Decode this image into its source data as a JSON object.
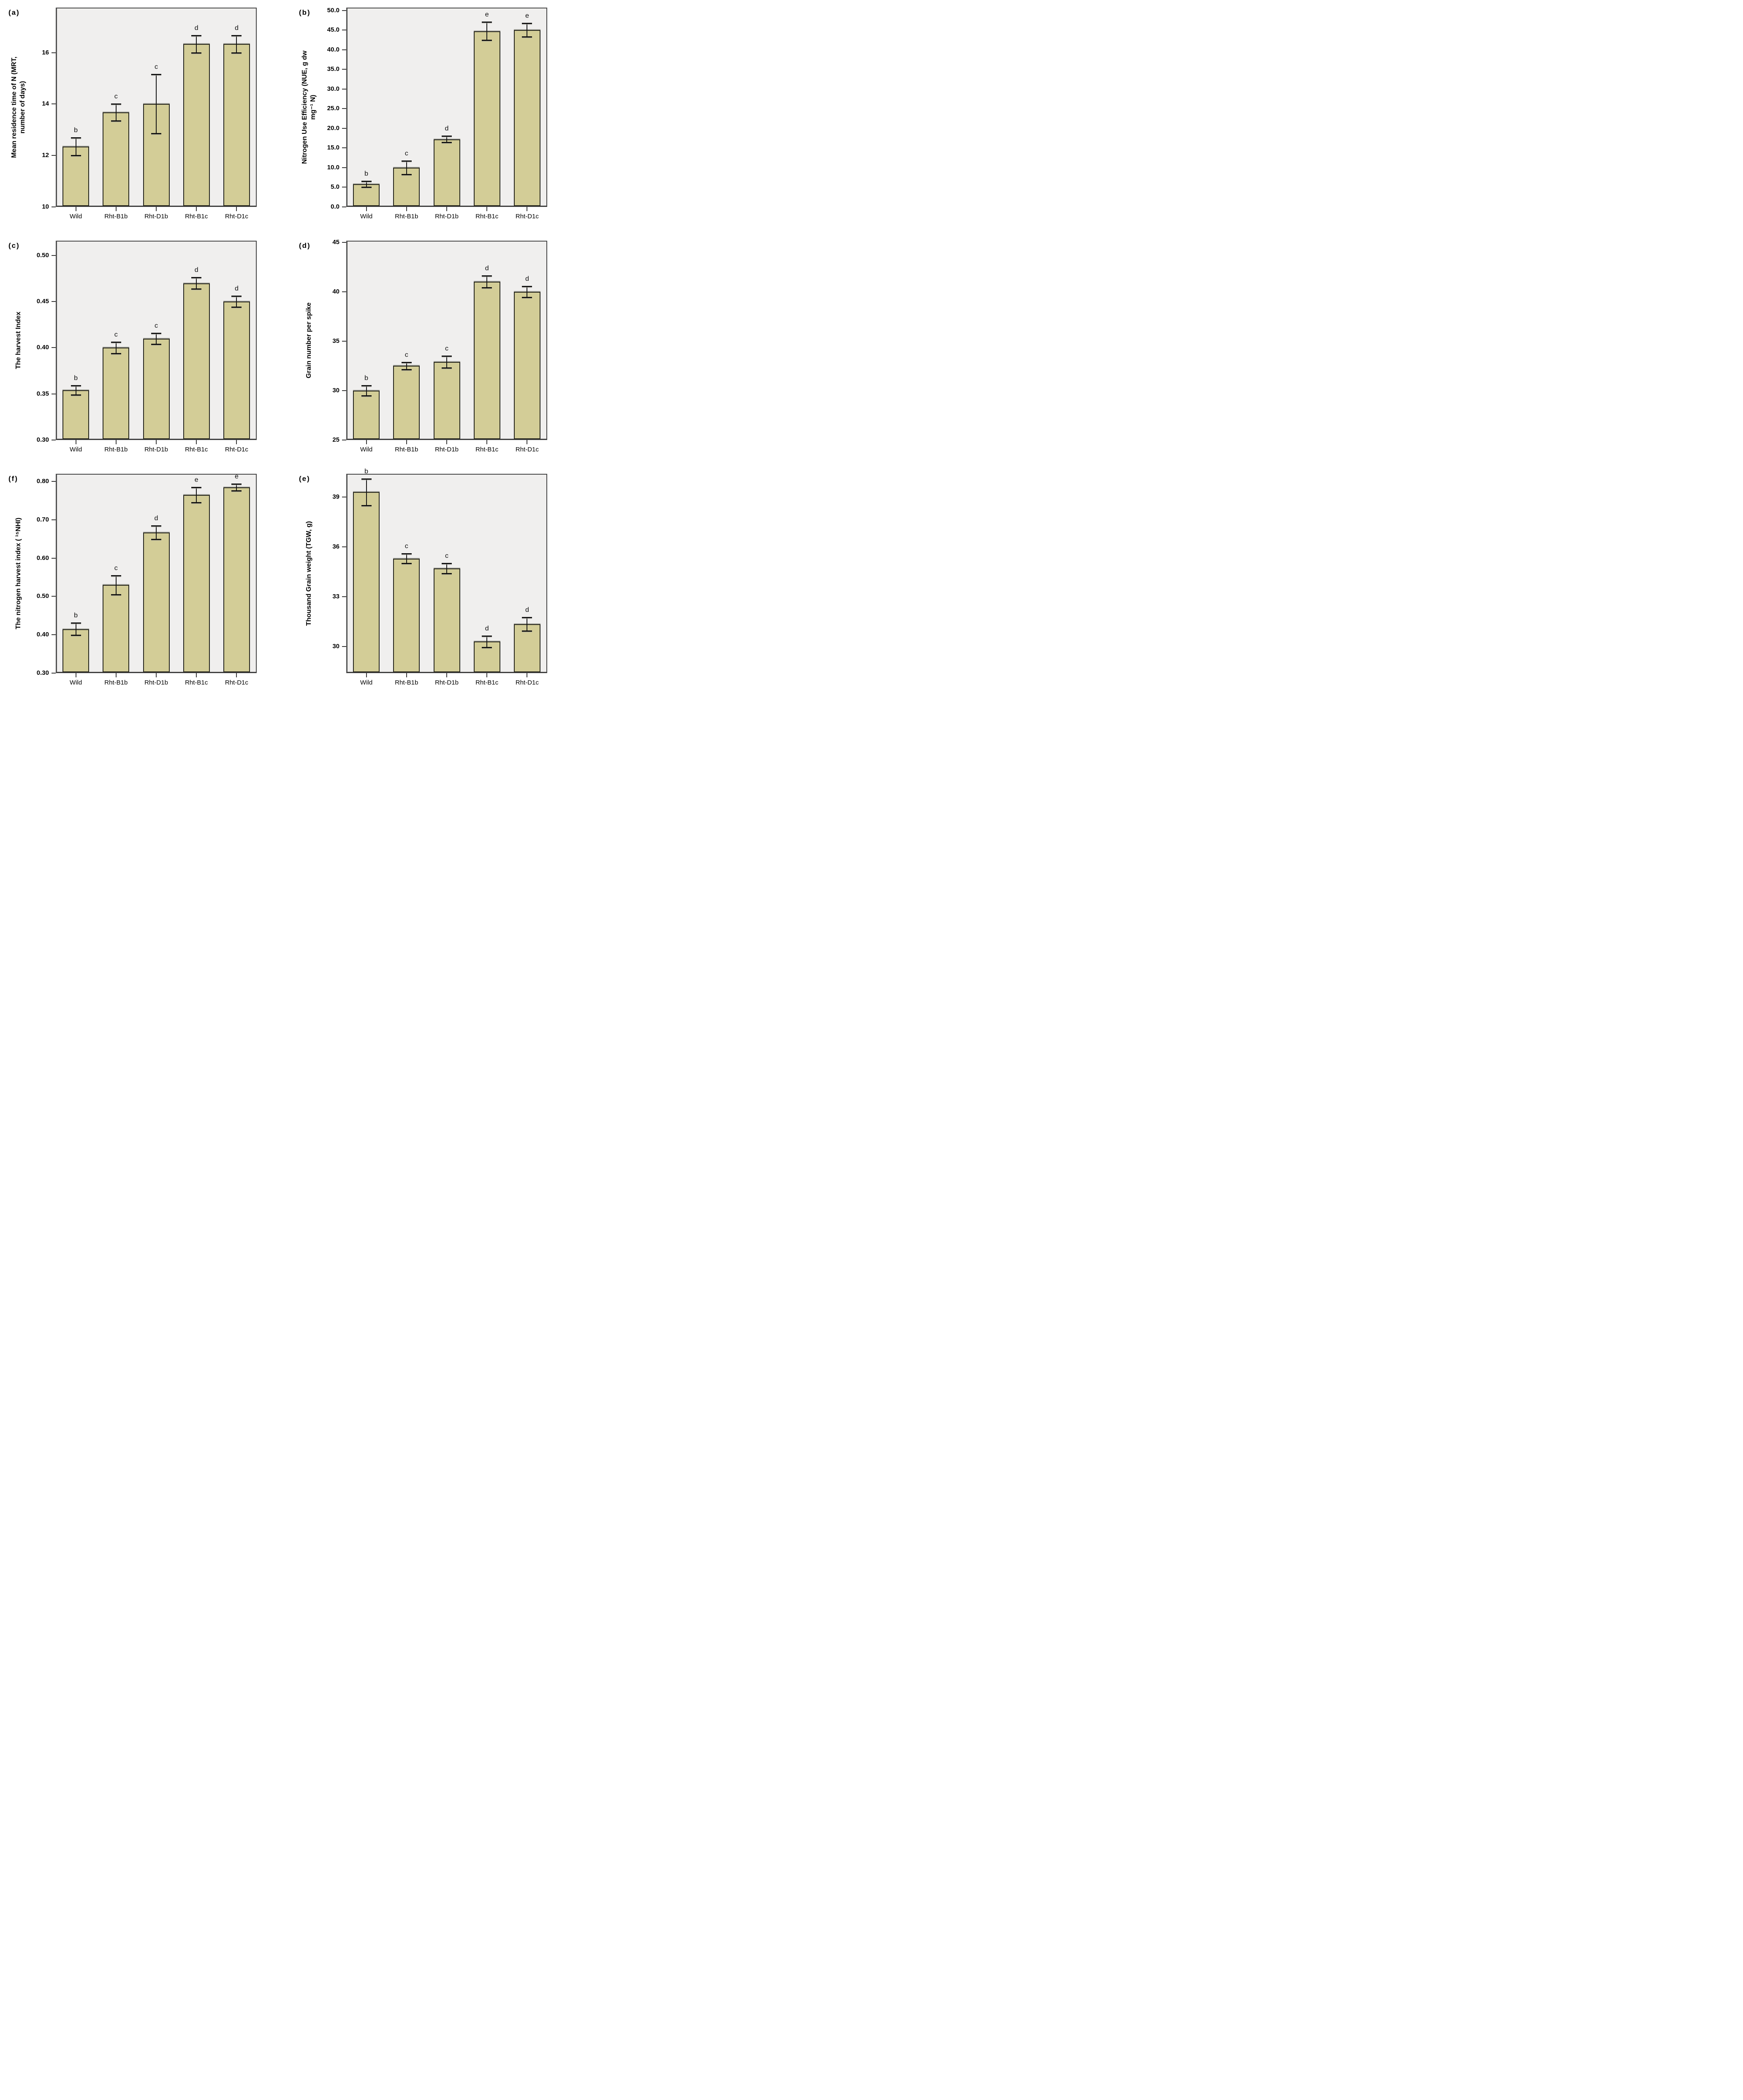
{
  "figure": {
    "background": "#ffffff",
    "plot_background": "#f0efee",
    "bar_fill": "#d3cd97",
    "bar_border": "#25251c",
    "frame_color": "#464646",
    "error_color": "#141414",
    "text_color": "#000000",
    "categories": [
      "Wild",
      "Rht-B1b",
      "Rht-D1b",
      "Rht-B1c",
      "Rht-D1c"
    ]
  },
  "chart_data": [
    {
      "id": "a",
      "panel_label": "(a)",
      "type": "bar",
      "ylabel_lines": [
        "Mean residence time of N (MRT,",
        "number of days)"
      ],
      "ylim": [
        10,
        17.75
      ],
      "ytick_values": [
        10,
        12,
        14,
        16
      ],
      "ytick_labels": [
        "10",
        "12",
        "14",
        "16"
      ],
      "categories": [
        "Wild",
        "Rht-B1b",
        "Rht-D1b",
        "Rht-B1c",
        "Rht-D1c"
      ],
      "values": [
        12.35,
        13.68,
        14.0,
        16.33,
        16.33
      ],
      "errors": [
        0.35,
        0.33,
        1.15,
        0.34,
        0.34
      ],
      "sig_letters": [
        "b",
        "c",
        "c",
        "d",
        "d"
      ],
      "grid": false,
      "legend": "none"
    },
    {
      "id": "b",
      "panel_label": "(b)",
      "type": "bar",
      "ylabel_lines": [
        "Nitrogen Use Efficiency (NUE, g dw",
        "mg⁻¹ N)"
      ],
      "ylim": [
        0,
        50.7
      ],
      "ytick_values": [
        0,
        5,
        10,
        15,
        20,
        25,
        30,
        35,
        40,
        45,
        50
      ],
      "ytick_labels": [
        "0.0",
        "5.0",
        "10.0",
        "15.0",
        "20.0",
        "25.0",
        "30.0",
        "35.0",
        "40.0",
        "45.0",
        "50.0"
      ],
      "categories": [
        "Wild",
        "Rht-B1b",
        "Rht-D1b",
        "Rht-B1c",
        "Rht-D1c"
      ],
      "values": [
        5.8,
        10.0,
        17.2,
        44.7,
        45.0
      ],
      "errors": [
        0.8,
        1.7,
        0.8,
        2.3,
        1.7
      ],
      "sig_letters": [
        "b",
        "c",
        "d",
        "e",
        "e"
      ],
      "grid": false,
      "legend": "none"
    },
    {
      "id": "c",
      "panel_label": "(c)",
      "type": "bar",
      "ylabel_lines": [
        "The harvest Index"
      ],
      "ylim": [
        0.3,
        0.516
      ],
      "ytick_values": [
        0.3,
        0.35,
        0.4,
        0.45,
        0.5
      ],
      "ytick_labels": [
        "0.30",
        "0.35",
        "0.40",
        "0.45",
        "0.50"
      ],
      "categories": [
        "Wild",
        "Rht-B1b",
        "Rht-D1b",
        "Rht-B1c",
        "Rht-D1c"
      ],
      "values": [
        0.354,
        0.4,
        0.41,
        0.47,
        0.45
      ],
      "errors": [
        0.005,
        0.006,
        0.006,
        0.006,
        0.006
      ],
      "sig_letters": [
        "b",
        "c",
        "c",
        "d",
        "d"
      ],
      "grid": false,
      "legend": "none"
    },
    {
      "id": "d",
      "panel_label": "(d)",
      "type": "bar",
      "ylabel_lines": [
        "Grain number per spike"
      ],
      "ylim": [
        25,
        45.15
      ],
      "ytick_values": [
        25,
        30,
        35,
        40,
        45
      ],
      "ytick_labels": [
        "25",
        "30",
        "35",
        "40",
        "45"
      ],
      "categories": [
        "Wild",
        "Rht-B1b",
        "Rht-D1b",
        "Rht-B1c",
        "Rht-D1c"
      ],
      "values": [
        30.0,
        32.5,
        32.9,
        41.0,
        40.0
      ],
      "errors": [
        0.5,
        0.35,
        0.6,
        0.6,
        0.55
      ],
      "sig_letters": [
        "b",
        "c",
        "c",
        "d",
        "d"
      ],
      "grid": false,
      "legend": "none"
    },
    {
      "id": "f",
      "panel_label": "(f)",
      "type": "bar",
      "ylabel_lines": [
        "The nitrogen harvest index ( ¹⁵NHI)"
      ],
      "ylim": [
        0.3,
        0.82
      ],
      "ytick_values": [
        0.3,
        0.4,
        0.5,
        0.6,
        0.7,
        0.8
      ],
      "ytick_labels": [
        "0.30",
        "0.40",
        "0.50",
        "0.60",
        "0.70",
        "0.80"
      ],
      "categories": [
        "Wild",
        "Rht-B1b",
        "Rht-D1b",
        "Rht-B1c",
        "Rht-D1c"
      ],
      "values": [
        0.415,
        0.53,
        0.667,
        0.765,
        0.785
      ],
      "errors": [
        0.016,
        0.025,
        0.018,
        0.02,
        0.009
      ],
      "sig_letters": [
        "b",
        "c",
        "d",
        "e",
        "e"
      ],
      "grid": false,
      "legend": "none"
    },
    {
      "id": "e",
      "panel_label": "(e)",
      "type": "bar",
      "ylabel_lines": [
        "Thousand Grain weight (TGW, g)"
      ],
      "ylim": [
        28.4,
        40.4
      ],
      "ytick_values": [
        30,
        33,
        36,
        39
      ],
      "ytick_labels": [
        "30",
        "33",
        "36",
        "39"
      ],
      "categories": [
        "Wild",
        "Rht-B1b",
        "Rht-D1b",
        "Rht-B1c",
        "Rht-D1c"
      ],
      "values": [
        39.3,
        35.3,
        34.7,
        30.3,
        31.35
      ],
      "errors": [
        0.8,
        0.3,
        0.3,
        0.35,
        0.4
      ],
      "sig_letters": [
        "b",
        "c",
        "c",
        "d",
        "d"
      ],
      "grid": false,
      "legend": "none"
    }
  ]
}
